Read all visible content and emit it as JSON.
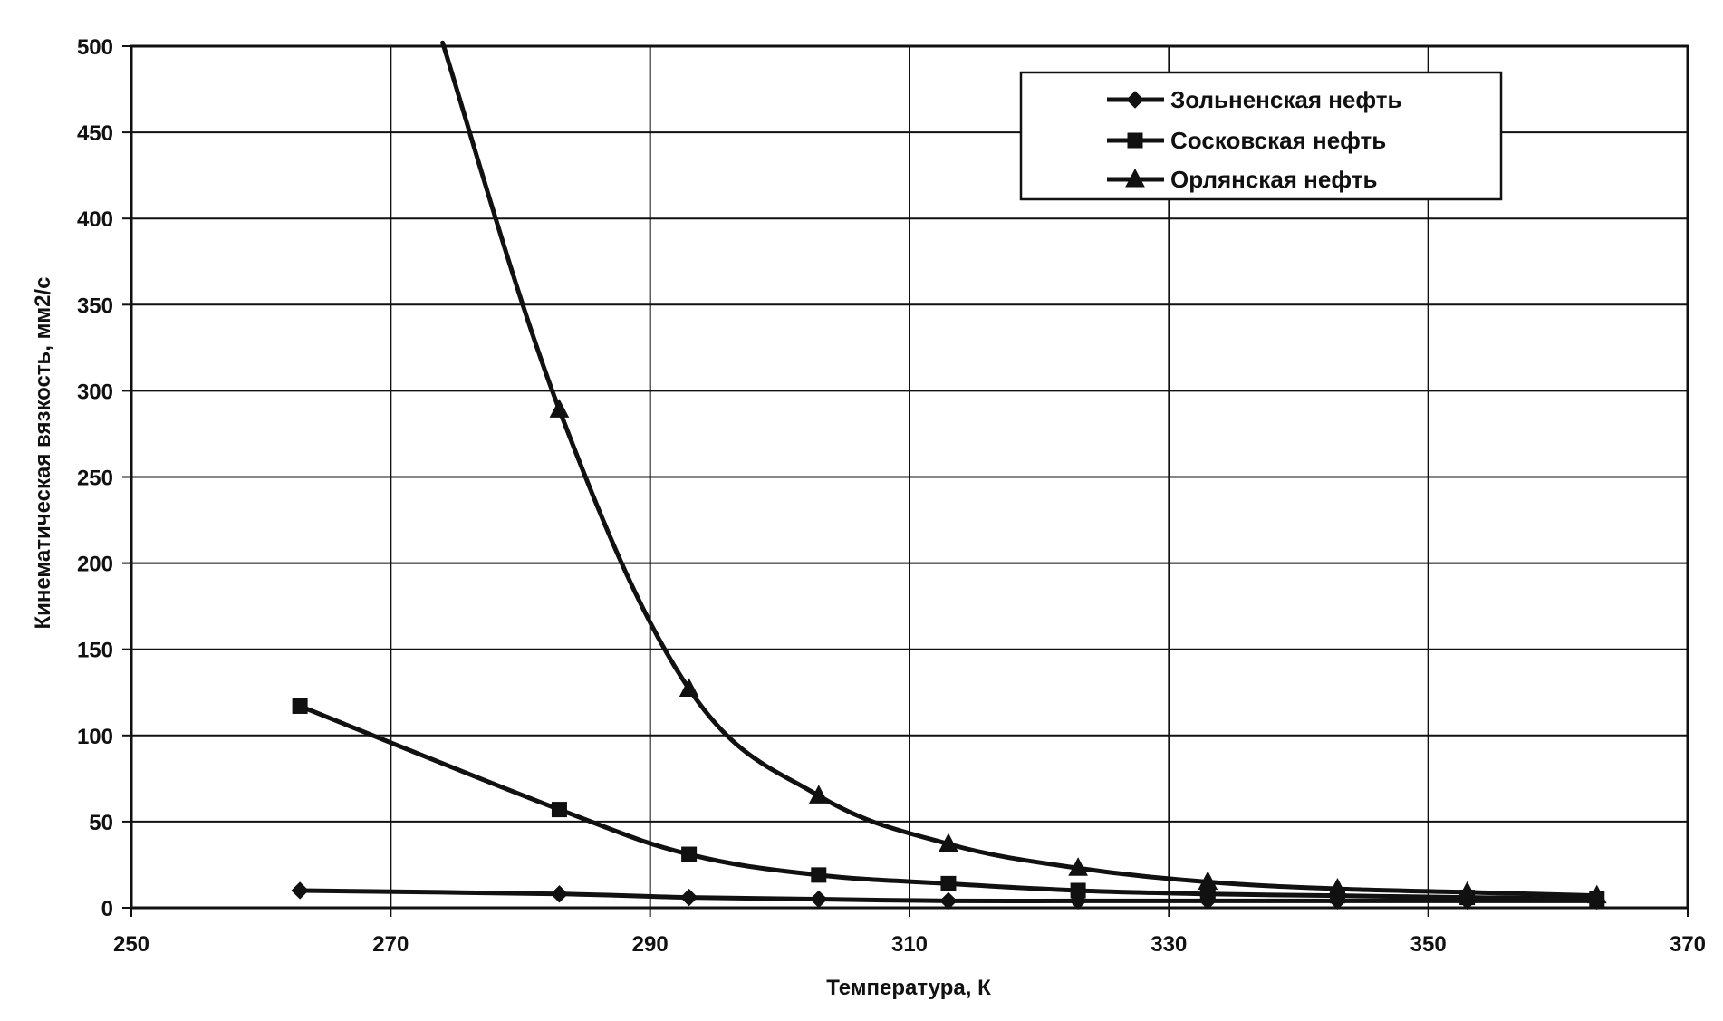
{
  "chart_data": {
    "type": "line",
    "xlabel": "Температура, К",
    "ylabel": "Кинематическая вязкость, мм2/с",
    "xlim": [
      250,
      370
    ],
    "ylim": [
      0,
      500
    ],
    "xticks": [
      250,
      270,
      290,
      310,
      330,
      350,
      370
    ],
    "yticks": [
      0,
      50,
      100,
      150,
      200,
      250,
      300,
      350,
      400,
      450,
      500
    ],
    "grid": true,
    "legend_position": "top-right",
    "series": [
      {
        "name": "Зольненская нефть",
        "marker": "diamond",
        "points": [
          {
            "x": 263,
            "y": 10
          },
          {
            "x": 283,
            "y": 8
          },
          {
            "x": 293,
            "y": 6
          },
          {
            "x": 303,
            "y": 5
          },
          {
            "x": 313,
            "y": 4
          },
          {
            "x": 323,
            "y": 4
          },
          {
            "x": 333,
            "y": 4
          },
          {
            "x": 343,
            "y": 4
          },
          {
            "x": 353,
            "y": 4
          },
          {
            "x": 363,
            "y": 4
          }
        ]
      },
      {
        "name": "Сосковская нефть",
        "marker": "square",
        "points": [
          {
            "x": 263,
            "y": 117
          },
          {
            "x": 283,
            "y": 57
          },
          {
            "x": 293,
            "y": 31
          },
          {
            "x": 303,
            "y": 19
          },
          {
            "x": 313,
            "y": 14
          },
          {
            "x": 323,
            "y": 10
          },
          {
            "x": 333,
            "y": 8
          },
          {
            "x": 343,
            "y": 7
          },
          {
            "x": 353,
            "y": 6
          },
          {
            "x": 363,
            "y": 5
          }
        ]
      },
      {
        "name": "Орлянская нефть",
        "marker": "triangle",
        "points": [
          {
            "x": 274,
            "y": 502
          },
          {
            "x": 283,
            "y": 289
          },
          {
            "x": 293,
            "y": 127
          },
          {
            "x": 303,
            "y": 65
          },
          {
            "x": 313,
            "y": 37
          },
          {
            "x": 323,
            "y": 23
          },
          {
            "x": 333,
            "y": 15
          },
          {
            "x": 343,
            "y": 11
          },
          {
            "x": 353,
            "y": 9
          },
          {
            "x": 363,
            "y": 7
          }
        ],
        "hidden_markers": [
          0
        ]
      }
    ]
  }
}
